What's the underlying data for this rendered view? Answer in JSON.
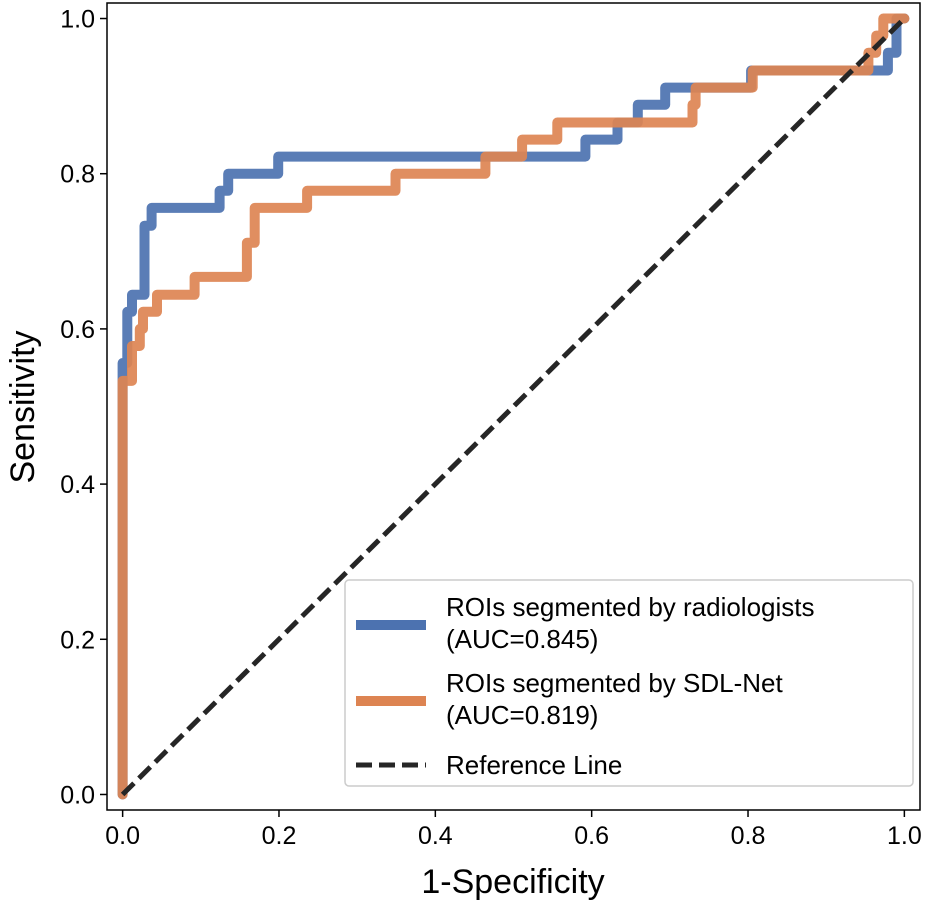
{
  "chart_data": {
    "type": "line",
    "title": "",
    "xlabel": "1-Specificity",
    "ylabel": "Sensitivity",
    "xlim": [
      -0.02,
      1.02
    ],
    "ylim": [
      -0.02,
      1.02
    ],
    "xticks": [
      "0.0",
      "0.2",
      "0.4",
      "0.6",
      "0.8",
      "1.0"
    ],
    "yticks": [
      "0.0",
      "0.2",
      "0.4",
      "0.6",
      "0.8",
      "1.0"
    ],
    "grid": false,
    "legend_position": "bottom-right",
    "series": [
      {
        "name": "ROIs segmented by radiologists",
        "auc_label": "(AUC=0.845)",
        "color": "#4c72b0",
        "style": "solid",
        "x": [
          0,
          0,
          0.006,
          0.006,
          0.012,
          0.012,
          0.028,
          0.028,
          0.037,
          0.037,
          0.124,
          0.124,
          0.135,
          0.135,
          0.199,
          0.199,
          0.592,
          0.592,
          0.633,
          0.633,
          0.659,
          0.659,
          0.694,
          0.694,
          0.804,
          0.804,
          0.979,
          0.979,
          0.99,
          0.99,
          1.0
        ],
        "y": [
          0,
          0.556,
          0.556,
          0.622,
          0.622,
          0.644,
          0.644,
          0.733,
          0.733,
          0.756,
          0.756,
          0.778,
          0.778,
          0.8,
          0.8,
          0.822,
          0.822,
          0.844,
          0.844,
          0.866,
          0.866,
          0.889,
          0.889,
          0.911,
          0.911,
          0.933,
          0.933,
          0.956,
          0.956,
          1.0,
          1.0
        ]
      },
      {
        "name": "ROIs segmented by SDL-Net",
        "auc_label": "(AUC=0.819)",
        "color": "#dd8452",
        "style": "solid",
        "x": [
          0,
          0,
          0.012,
          0.012,
          0.022,
          0.022,
          0.026,
          0.026,
          0.044,
          0.044,
          0.092,
          0.092,
          0.159,
          0.159,
          0.169,
          0.169,
          0.236,
          0.236,
          0.349,
          0.349,
          0.464,
          0.464,
          0.511,
          0.511,
          0.556,
          0.556,
          0.729,
          0.729,
          0.733,
          0.733,
          0.806,
          0.806,
          0.954,
          0.954,
          0.964,
          0.964,
          0.973,
          0.973,
          1.0
        ],
        "y": [
          0,
          0.533,
          0.533,
          0.578,
          0.578,
          0.6,
          0.6,
          0.622,
          0.622,
          0.644,
          0.644,
          0.667,
          0.667,
          0.711,
          0.711,
          0.756,
          0.756,
          0.778,
          0.778,
          0.8,
          0.8,
          0.822,
          0.822,
          0.844,
          0.844,
          0.866,
          0.866,
          0.889,
          0.889,
          0.911,
          0.911,
          0.933,
          0.933,
          0.956,
          0.956,
          0.978,
          0.978,
          1.0,
          1.0
        ]
      },
      {
        "name": "Reference Line",
        "color": "#262626",
        "style": "dashed",
        "x": [
          0,
          1
        ],
        "y": [
          0,
          1
        ]
      }
    ]
  }
}
